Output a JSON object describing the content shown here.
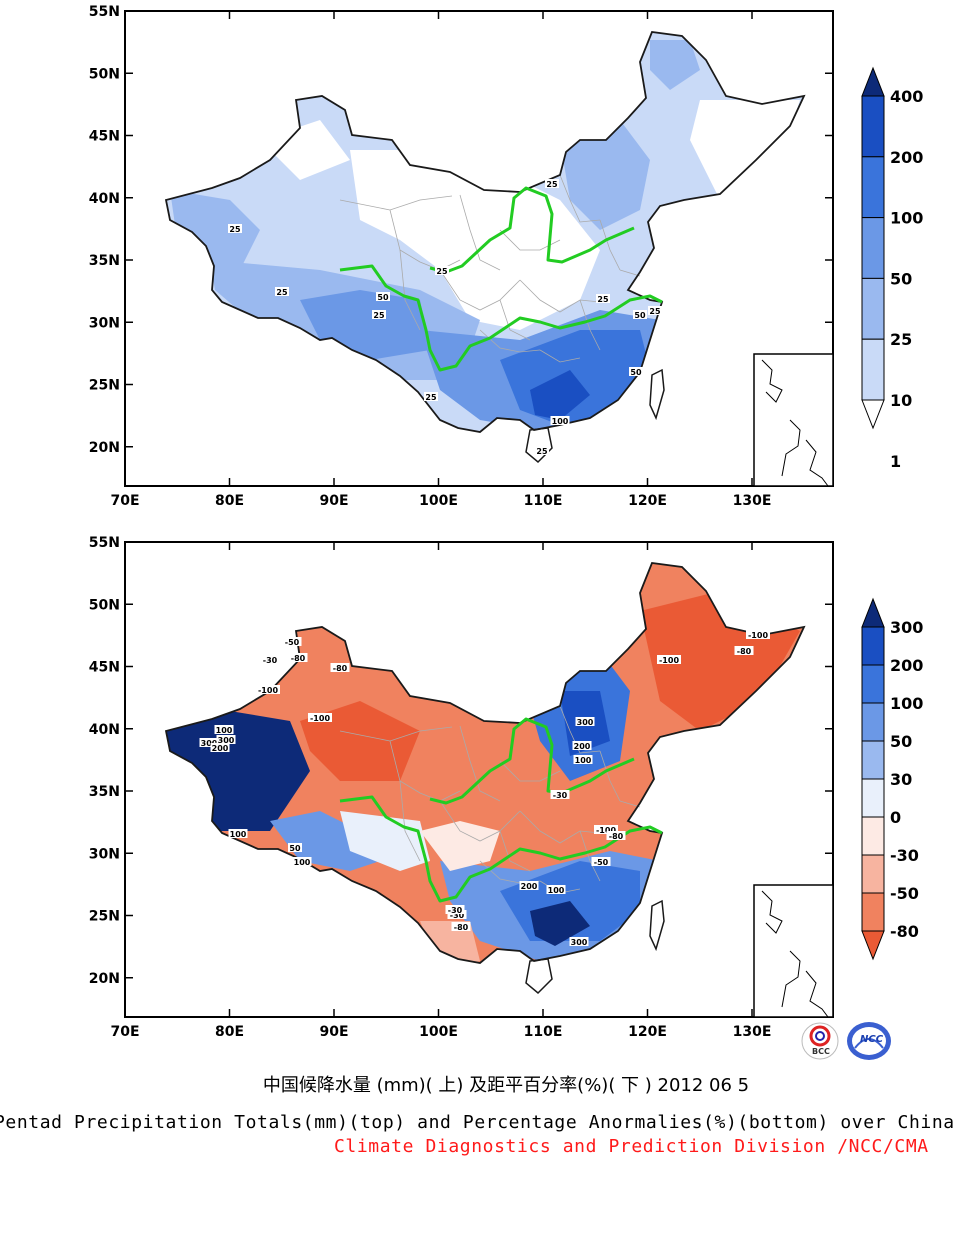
{
  "maps": [
    {
      "name": "pentad-precipitation-totals",
      "lat_labels": [
        "55N",
        "50N",
        "45N",
        "40N",
        "35N",
        "30N",
        "25N",
        "20N"
      ],
      "lon_labels": [
        "70E",
        "80E",
        "90E",
        "100E",
        "110E",
        "120E",
        "130E"
      ],
      "colorbar": {
        "labels": [
          "400",
          "200",
          "100",
          "50",
          "25",
          "10",
          "1"
        ],
        "colors": [
          "#0d2a78",
          "#1a4fc2",
          "#3a74db",
          "#6b98e6",
          "#9ab9ef",
          "#c9daf7",
          "#ffffff"
        ]
      },
      "contour_labels": [
        "25",
        "25",
        "25",
        "25",
        "50",
        "25",
        "25",
        "25",
        "50",
        "50",
        "100",
        "25",
        "25"
      ]
    },
    {
      "name": "precipitation-percentage-anomalies",
      "lat_labels": [
        "55N",
        "50N",
        "45N",
        "40N",
        "35N",
        "30N",
        "25N",
        "20N"
      ],
      "lon_labels": [
        "70E",
        "80E",
        "90E",
        "100E",
        "110E",
        "120E",
        "130E"
      ],
      "colorbar": {
        "labels": [
          "300",
          "200",
          "100",
          "50",
          "30",
          "0",
          "-30",
          "-50",
          "-80"
        ],
        "colors": [
          "#0d2a78",
          "#1a4fc2",
          "#3a74db",
          "#6b98e6",
          "#9ab9ef",
          "#e9f0fb",
          "#fdeae4",
          "#f7b4a0",
          "#f0825f",
          "#ea5a35"
        ]
      },
      "contour_labels": [
        "300",
        "100",
        "-30",
        "-80",
        "-100",
        "-50",
        "-100",
        "-80",
        "300",
        "200",
        "100",
        "-100",
        "-80",
        "-30",
        "300",
        "200",
        "100",
        "-50",
        "-30",
        "-100",
        "300",
        "200",
        "100",
        "-80",
        "-30",
        "50",
        "100",
        "-100",
        "-80"
      ]
    }
  ],
  "title_cn": "中国候降水量 (mm)( 上) 及距平百分率(%)( 下 ) 2012 06 5",
  "title_en": "Pentad Precipitation Totals(mm)(top) and Percentage Anormalies(%)(bottom) over China",
  "title_org": "Climate Diagnostics and Prediction Division /NCC/CMA",
  "logos": [
    "BCC",
    "NCC"
  ],
  "colors": {
    "boundary": "#1a1a1a",
    "river": "#22cc22",
    "title_org": "#ff1a1a"
  }
}
